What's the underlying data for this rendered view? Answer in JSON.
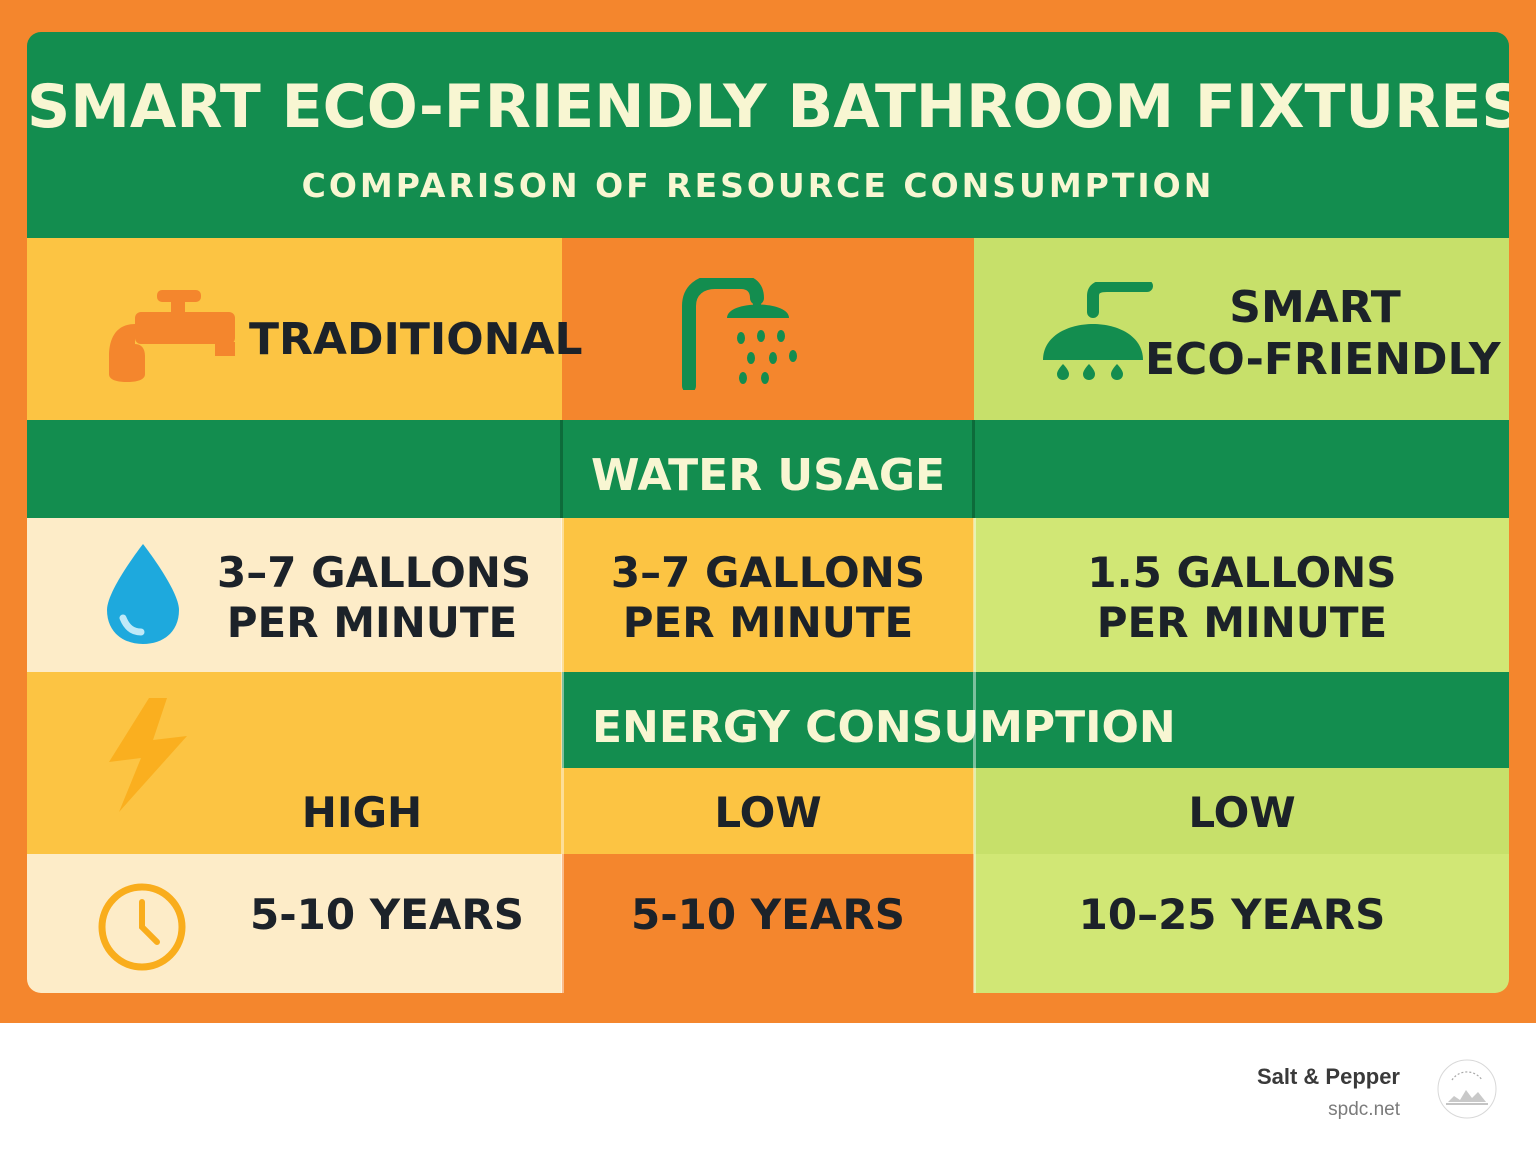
{
  "header": {
    "title": "SMART ECO-FRIENDLY BATHROOM FIXTURES",
    "subtitle": "COMPARISON OF RESOURCE CONSUMPTION"
  },
  "columns": {
    "traditional": "TRADITIONAL",
    "smart_line1": "SMART",
    "smart_line2": "ECO-FRIENDLY"
  },
  "sections": {
    "water": "WATER USAGE",
    "energy": "ENERGY CONSUMPTION"
  },
  "rows": {
    "water": {
      "col1_line1": "3–7 GALLONS",
      "col1_line2": "PER MINUTE",
      "col2_line1": "3–7 GALLONS",
      "col2_line2": "PER MINUTE",
      "col3_line1": "1.5 GALLONS",
      "col3_line2": "PER MINUTE"
    },
    "energy": {
      "col1": "HIGH",
      "col2": "LOW",
      "col3": "LOW"
    },
    "lifespan": {
      "col1": "5-10 YEARS",
      "col2": "5-10 YEARS",
      "col3": "10–25 YEARS"
    }
  },
  "icons": {
    "faucet": "faucet-icon",
    "shower": "shower-icon",
    "smart_shower": "smart-shower-icon",
    "water": "water-drop-icon",
    "energy": "lightning-icon",
    "lifespan": "clock-icon"
  },
  "colors": {
    "orange": "#f4862d",
    "green": "#138d4f",
    "yellow": "#fcc443",
    "light_green": "#c7e06a",
    "cream": "#fdecc8"
  },
  "footer": {
    "brand": "Salt & Pepper",
    "url": "spdc.net",
    "logo_text": "SALT & PEPPER CONSTRUCTION"
  }
}
